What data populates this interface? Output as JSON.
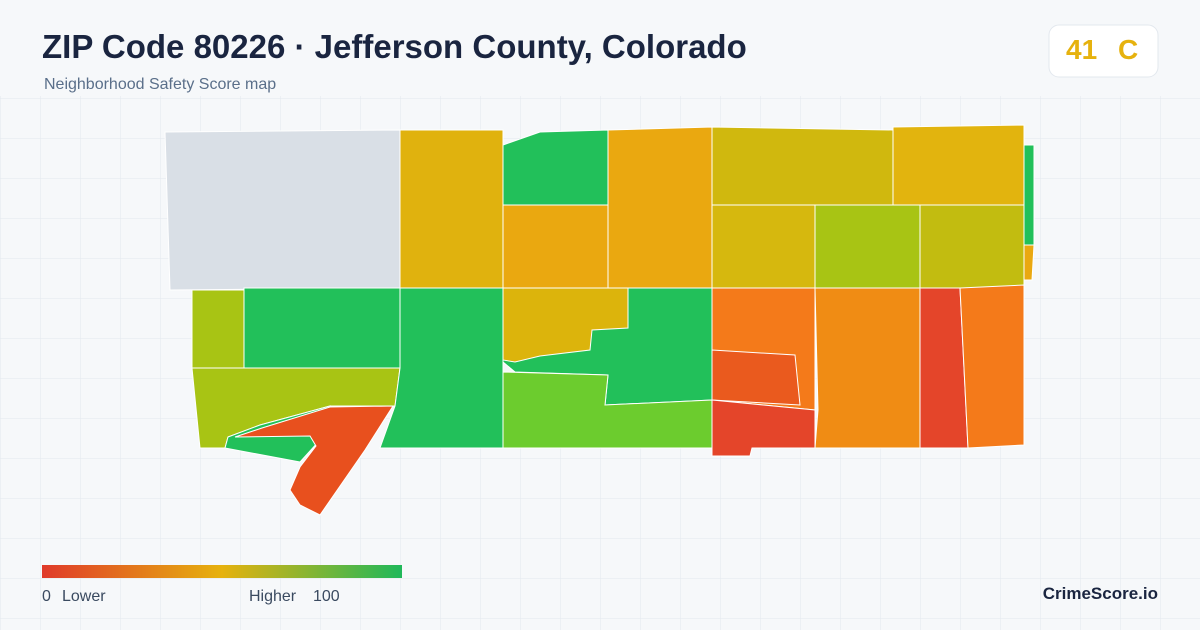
{
  "header": {
    "title": "ZIP Code 80226 · Jefferson County, Colorado",
    "subtitle": "Neighborhood Safety Score map"
  },
  "score": {
    "value": "41",
    "grade": "C"
  },
  "legend": {
    "min": "0",
    "min_label": "Lower",
    "max_label": "Higher",
    "max": "100"
  },
  "brand": "CrimeScore.io"
}
